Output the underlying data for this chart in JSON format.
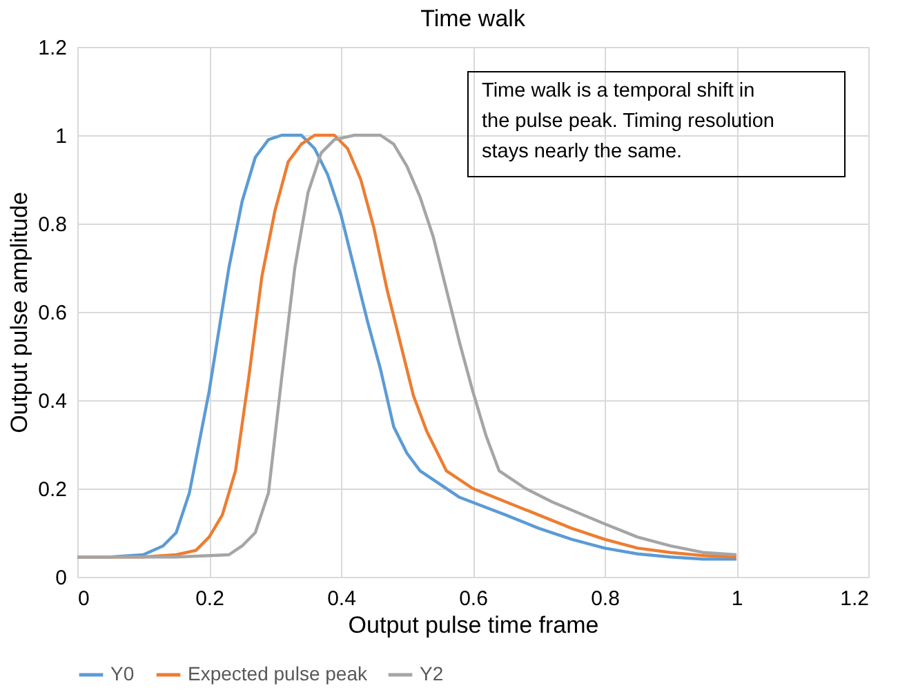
{
  "chart_data": {
    "type": "line",
    "title": "Time walk",
    "xlabel": "Output pulse time frame",
    "ylabel": "Output pulse amplitude",
    "xlim": [
      0,
      1.2
    ],
    "xticks": [
      0,
      0.2,
      0.4,
      0.6,
      0.8,
      1,
      1.2
    ],
    "ylim": [
      0,
      1.2
    ],
    "yticks": [
      0,
      0.2,
      0.4,
      0.6,
      0.8,
      1,
      1.2
    ],
    "grid": true,
    "legend": "bottom",
    "marker": "none",
    "line_style": "solid",
    "annotations": [
      "Time walk is a temporal shift in the pulse peak. Timing resolution stays nearly the same."
    ],
    "series": [
      {
        "name": "Y0",
        "color": "#5b9bd5",
        "x": [
          0,
          0.05,
          0.1,
          0.13,
          0.15,
          0.17,
          0.2,
          0.23,
          0.25,
          0.27,
          0.29,
          0.31,
          0.34,
          0.36,
          0.38,
          0.4,
          0.42,
          0.44,
          0.46,
          0.48,
          0.5,
          0.52,
          0.55,
          0.58,
          0.65,
          0.7,
          0.75,
          0.8,
          0.85,
          0.9,
          0.95,
          1.0
        ],
        "values": [
          0.045,
          0.045,
          0.05,
          0.07,
          0.1,
          0.19,
          0.42,
          0.7,
          0.85,
          0.95,
          0.99,
          1.0,
          1.0,
          0.97,
          0.91,
          0.82,
          0.7,
          0.58,
          0.47,
          0.34,
          0.28,
          0.24,
          0.21,
          0.18,
          0.14,
          0.11,
          0.085,
          0.065,
          0.052,
          0.045,
          0.04,
          0.04
        ]
      },
      {
        "name": "Expected pulse peak",
        "color": "#ed7d31",
        "x": [
          0,
          0.1,
          0.15,
          0.18,
          0.2,
          0.22,
          0.24,
          0.26,
          0.28,
          0.3,
          0.32,
          0.34,
          0.36,
          0.39,
          0.41,
          0.43,
          0.45,
          0.47,
          0.49,
          0.51,
          0.53,
          0.56,
          0.6,
          0.65,
          0.7,
          0.75,
          0.8,
          0.85,
          0.9,
          0.95,
          1.0
        ],
        "values": [
          0.045,
          0.045,
          0.05,
          0.06,
          0.09,
          0.14,
          0.24,
          0.45,
          0.68,
          0.83,
          0.94,
          0.98,
          1.0,
          1.0,
          0.97,
          0.9,
          0.79,
          0.65,
          0.53,
          0.41,
          0.33,
          0.24,
          0.2,
          0.17,
          0.14,
          0.11,
          0.085,
          0.065,
          0.055,
          0.048,
          0.045
        ]
      },
      {
        "name": "Y2",
        "color": "#a5a5a5",
        "x": [
          0,
          0.15,
          0.2,
          0.23,
          0.25,
          0.27,
          0.29,
          0.31,
          0.33,
          0.35,
          0.37,
          0.39,
          0.42,
          0.46,
          0.48,
          0.5,
          0.52,
          0.54,
          0.56,
          0.58,
          0.6,
          0.62,
          0.64,
          0.68,
          0.72,
          0.8,
          0.85,
          0.9,
          0.95,
          1.0
        ],
        "values": [
          0.045,
          0.045,
          0.048,
          0.05,
          0.07,
          0.1,
          0.19,
          0.45,
          0.7,
          0.87,
          0.96,
          0.99,
          1.0,
          1.0,
          0.98,
          0.93,
          0.86,
          0.77,
          0.65,
          0.53,
          0.42,
          0.32,
          0.24,
          0.2,
          0.17,
          0.12,
          0.09,
          0.07,
          0.055,
          0.05
        ]
      }
    ]
  }
}
